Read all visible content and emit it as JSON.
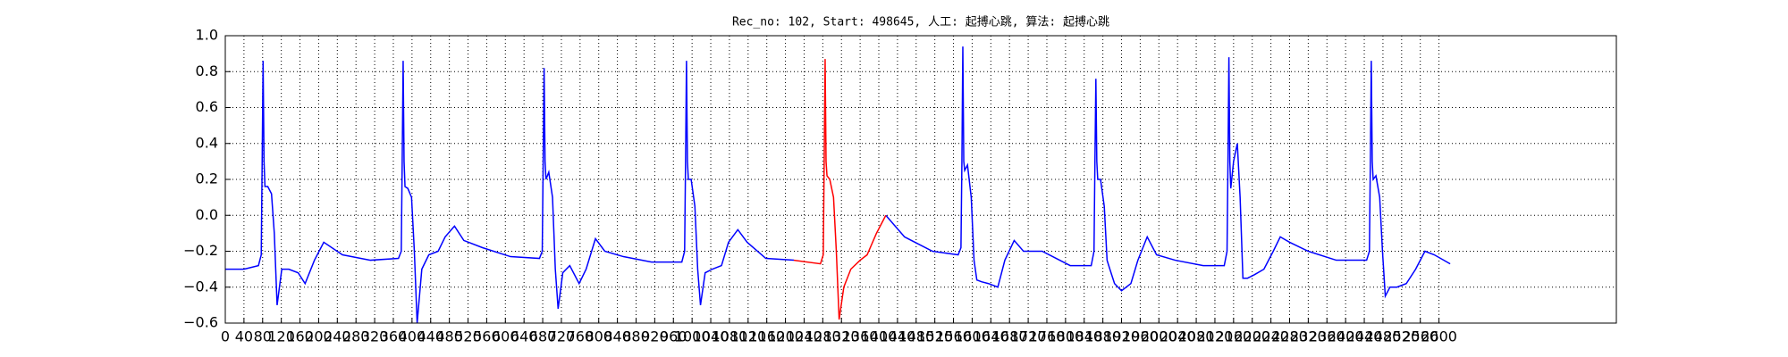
{
  "chart_data": {
    "type": "line",
    "title": "Rec_no: 102, Start: 498645, 人工: 起搏心跳, 算法: 起搏心跳",
    "xlim": [
      0,
      2980
    ],
    "xticks": [
      0,
      40,
      80,
      120,
      160,
      200,
      240,
      280,
      320,
      360,
      400,
      440,
      480,
      520,
      560,
      600,
      640,
      680,
      720,
      760,
      800,
      840,
      880,
      920,
      960,
      1000,
      1040,
      1080,
      1120,
      1160,
      1200,
      1240,
      1280,
      1320,
      1360,
      1400,
      1440,
      1480,
      1520,
      1560,
      1600,
      1640,
      1680,
      1720,
      1760,
      1800,
      1840,
      1880,
      1920,
      1960,
      2000,
      2040,
      2080,
      2120,
      2160,
      2200,
      2240,
      2280,
      2320,
      2360,
      2400,
      2440,
      2480,
      2520,
      2560,
      2600
    ],
    "ylim": [
      -0.6,
      1.0
    ],
    "yticks": [
      {
        "value": -0.6,
        "label": "−0.6"
      },
      {
        "value": -0.4,
        "label": "−0.4"
      },
      {
        "value": -0.2,
        "label": "−0.2"
      },
      {
        "value": 0,
        "label": "0.0"
      },
      {
        "value": 0.2,
        "label": "0.2"
      },
      {
        "value": 0.4,
        "label": "0.4"
      },
      {
        "value": 0.6,
        "label": "0.6"
      },
      {
        "value": 0.8,
        "label": "0.8"
      },
      {
        "value": 1.0,
        "label": "1.0"
      }
    ],
    "grid": true,
    "series": [
      {
        "color": "#0000ff",
        "x": [
          0,
          40,
          71,
          77,
          79,
          81,
          83,
          85,
          91,
          99,
          105,
          111,
          121,
          136,
          156,
          171,
          191,
          211,
          251,
          311,
          371,
          377,
          379,
          381,
          383,
          385,
          391,
          399,
          405,
          411,
          421,
          436,
          456,
          471,
          491,
          511,
          551,
          611,
          673,
          679,
          681,
          683,
          685,
          687,
          693,
          701,
          707,
          713,
          723,
          738,
          758,
          773,
          793,
          813,
          853,
          913,
          978,
          984,
          986,
          988,
          990,
          992,
          998,
          1006,
          1012,
          1018,
          1028,
          1043,
          1063,
          1078,
          1098,
          1118,
          1158,
          1218,
          1250,
          1415,
          1455,
          1515,
          1570,
          1576,
          1578,
          1580,
          1582,
          1584,
          1590,
          1598,
          1604,
          1610,
          1620,
          1635,
          1655,
          1670,
          1690,
          1710,
          1750,
          1810,
          1855,
          1861,
          1863,
          1865,
          1867,
          1869,
          1875,
          1883,
          1889,
          1895,
          1905,
          1920,
          1940,
          1955,
          1975,
          1995,
          2035,
          2095,
          2140,
          2146,
          2148,
          2150,
          2152,
          2154,
          2160,
          2168,
          2174,
          2180,
          2190,
          2205,
          2225,
          2245,
          2260,
          2280,
          2320,
          2380,
          2445,
          2451,
          2453,
          2455,
          2457,
          2459,
          2465,
          2473,
          2479,
          2485,
          2495,
          2510,
          2530,
          2550,
          2570,
          2590,
          2624
        ],
        "values": [
          -0.3,
          -0.3,
          -0.28,
          -0.22,
          0.3,
          0.86,
          0.3,
          0.16,
          0.16,
          0.12,
          -0.1,
          -0.5,
          -0.3,
          -0.3,
          -0.32,
          -0.38,
          -0.25,
          -0.15,
          -0.22,
          -0.25,
          -0.24,
          -0.2,
          0.3,
          0.86,
          0.3,
          0.16,
          0.15,
          0.1,
          -0.2,
          -0.6,
          -0.3,
          -0.22,
          -0.2,
          -0.12,
          -0.06,
          -0.14,
          -0.18,
          -0.23,
          -0.24,
          -0.2,
          0.3,
          0.82,
          0.3,
          0.2,
          0.24,
          0.1,
          -0.3,
          -0.52,
          -0.32,
          -0.28,
          -0.38,
          -0.3,
          -0.13,
          -0.2,
          -0.23,
          -0.26,
          -0.26,
          -0.2,
          0.3,
          0.86,
          0.3,
          0.2,
          0.2,
          0.05,
          -0.3,
          -0.5,
          -0.32,
          -0.3,
          -0.28,
          -0.15,
          -0.08,
          -0.15,
          -0.24,
          -0.25,
          null,
          0.0,
          -0.12,
          -0.2,
          -0.22,
          -0.18,
          0.3,
          0.94,
          0.3,
          0.25,
          0.28,
          0.1,
          -0.25,
          -0.36,
          -0.37,
          -0.38,
          -0.4,
          -0.25,
          -0.14,
          -0.2,
          -0.2,
          -0.28,
          -0.28,
          -0.2,
          0.3,
          0.76,
          0.3,
          0.2,
          0.2,
          0.05,
          -0.25,
          -0.3,
          -0.38,
          -0.42,
          -0.38,
          -0.25,
          -0.12,
          -0.22,
          -0.25,
          -0.28,
          -0.28,
          -0.2,
          0.3,
          0.88,
          0.3,
          0.15,
          0.3,
          0.4,
          0.1,
          -0.35,
          -0.35,
          -0.33,
          -0.3,
          -0.2,
          -0.12,
          -0.15,
          -0.2,
          -0.25,
          -0.25,
          -0.2,
          0.3,
          0.86,
          0.3,
          0.2,
          0.22,
          0.1,
          -0.2,
          -0.45,
          -0.4,
          -0.4,
          -0.38,
          -0.3,
          -0.2,
          -0.22,
          -0.27
        ]
      },
      {
        "color": "#ff0000",
        "x": [
          1218,
          1275,
          1281,
          1283,
          1285,
          1287,
          1289,
          1295,
          1303,
          1309,
          1315,
          1325,
          1340,
          1360,
          1375,
          1395,
          1415
        ],
        "values": [
          -0.25,
          -0.27,
          -0.22,
          0.3,
          0.87,
          0.3,
          0.22,
          0.2,
          0.1,
          -0.2,
          -0.58,
          -0.4,
          -0.3,
          -0.25,
          -0.22,
          -0.1,
          0.0
        ]
      }
    ]
  }
}
